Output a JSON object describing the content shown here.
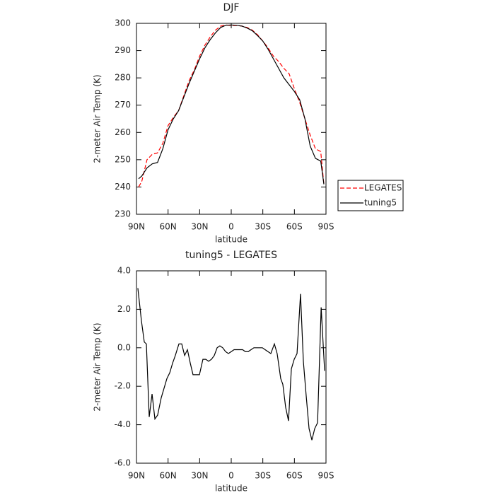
{
  "chart_data": [
    {
      "type": "line",
      "title": "DJF",
      "x_label": "latitude",
      "y_label": "2-meter Air Temp (K)",
      "xlim": [
        90,
        -90
      ],
      "xticks": [
        {
          "value": 90,
          "label": "90N"
        },
        {
          "value": 60,
          "label": "60N"
        },
        {
          "value": 30,
          "label": "30N"
        },
        0,
        {
          "value": -30,
          "label": "30S"
        },
        {
          "value": -60,
          "label": "60S"
        },
        {
          "value": -90,
          "label": "90S"
        }
      ],
      "ylim": [
        230,
        300
      ],
      "yticks": [
        230,
        240,
        250,
        260,
        270,
        280,
        290,
        300
      ],
      "legend": "right",
      "x": [
        88,
        85,
        80,
        75,
        70,
        65,
        60,
        55,
        50,
        45,
        40,
        35,
        30,
        25,
        20,
        15,
        10,
        5,
        0,
        -5,
        -10,
        -15,
        -20,
        -25,
        -30,
        -35,
        -40,
        -45,
        -50,
        -55,
        -60,
        -65,
        -70,
        -75,
        -80,
        -85,
        -88
      ],
      "series": [
        {
          "name": "LEGATES",
          "color": "#ff0000",
          "dashed": true,
          "values": [
            240,
            242,
            250,
            252,
            252.5,
            256,
            262.5,
            265.5,
            268,
            273.5,
            279,
            283,
            288,
            292,
            295,
            297.5,
            299,
            299.4,
            299.2,
            299.2,
            299,
            298.5,
            297.5,
            295.8,
            293.5,
            291,
            288,
            286,
            283.5,
            281.5,
            276,
            271,
            265,
            259,
            254,
            253,
            241
          ]
        },
        {
          "name": "tuning5",
          "color": "#000000",
          "dashed": false,
          "values": [
            243,
            244,
            247,
            248.5,
            249,
            254,
            261,
            265,
            268,
            273,
            278,
            282.5,
            287,
            291,
            294,
            296.5,
            298.5,
            299.3,
            299.4,
            299.3,
            299,
            298.3,
            297.3,
            295.5,
            293.5,
            290.5,
            287,
            283.5,
            280,
            277.5,
            275,
            272,
            265,
            255,
            250.5,
            249.5,
            241
          ]
        }
      ]
    },
    {
      "type": "line",
      "title": "tuning5 - LEGATES",
      "x_label": "latitude",
      "y_label": "2-meter Air Temp (K)",
      "xlim": [
        90,
        -90
      ],
      "xticks": [
        {
          "value": 90,
          "label": "90N"
        },
        {
          "value": 60,
          "label": "60N"
        },
        {
          "value": 30,
          "label": "30N"
        },
        0,
        {
          "value": -30,
          "label": "30S"
        },
        {
          "value": -60,
          "label": "60S"
        },
        {
          "value": -90,
          "label": "90S"
        }
      ],
      "ylim": [
        -6,
        4
      ],
      "yticks": [
        {
          "value": -6,
          "label": "-6.0"
        },
        {
          "value": -4,
          "label": "-4.0"
        },
        {
          "value": -2,
          "label": "-2.0"
        },
        {
          "value": 0,
          "label": "0.0"
        },
        {
          "value": 2,
          "label": "2.0"
        },
        {
          "value": 4,
          "label": "4.0"
        }
      ],
      "color": "#000000",
      "x": [
        88.7,
        85.3,
        82.6,
        80.6,
        77.9,
        75.2,
        72.5,
        69.9,
        66.5,
        61.1,
        58.4,
        55.7,
        53.1,
        49.7,
        47.0,
        44.3,
        41.6,
        38.9,
        36.3,
        30.2,
        26.9,
        24.2,
        21.5,
        18.8,
        16.1,
        13.4,
        10.8,
        8.1,
        5.4,
        2.7,
        0,
        -2.7,
        -8.1,
        -10.8,
        -13.4,
        -16.1,
        -18.8,
        -21.5,
        -26.9,
        -29.6,
        -32.2,
        -34.9,
        -37.6,
        -40.3,
        -41.0,
        -43.6,
        -47.0,
        -49.0,
        -51.7,
        -54.4,
        -57.1,
        -59.8,
        -62.5,
        -65.8,
        -68.5,
        -71.2,
        -73.9,
        -76.6,
        -79.3,
        -82.0,
        -85.4,
        -88.7
      ],
      "values": [
        3.1,
        1.4,
        0.3,
        0.2,
        -3.6,
        -2.4,
        -3.7,
        -3.5,
        -2.6,
        -1.6,
        -1.3,
        -0.8,
        -0.4,
        0.2,
        0.2,
        -0.4,
        -0.1,
        -0.8,
        -1.4,
        -1.4,
        -0.6,
        -0.6,
        -0.7,
        -0.6,
        -0.4,
        0.0,
        0.1,
        0.0,
        -0.2,
        -0.3,
        -0.2,
        -0.1,
        -0.1,
        -0.1,
        -0.2,
        -0.2,
        -0.1,
        0.0,
        0.0,
        0.0,
        -0.1,
        -0.2,
        -0.3,
        0.1,
        0.2,
        -0.3,
        -1.6,
        -1.9,
        -3.1,
        -3.8,
        -1.1,
        -0.6,
        -0.3,
        2.8,
        -0.7,
        -2.5,
        -4.2,
        -4.8,
        -4.2,
        -3.9,
        2.1,
        -1.2
      ]
    }
  ]
}
